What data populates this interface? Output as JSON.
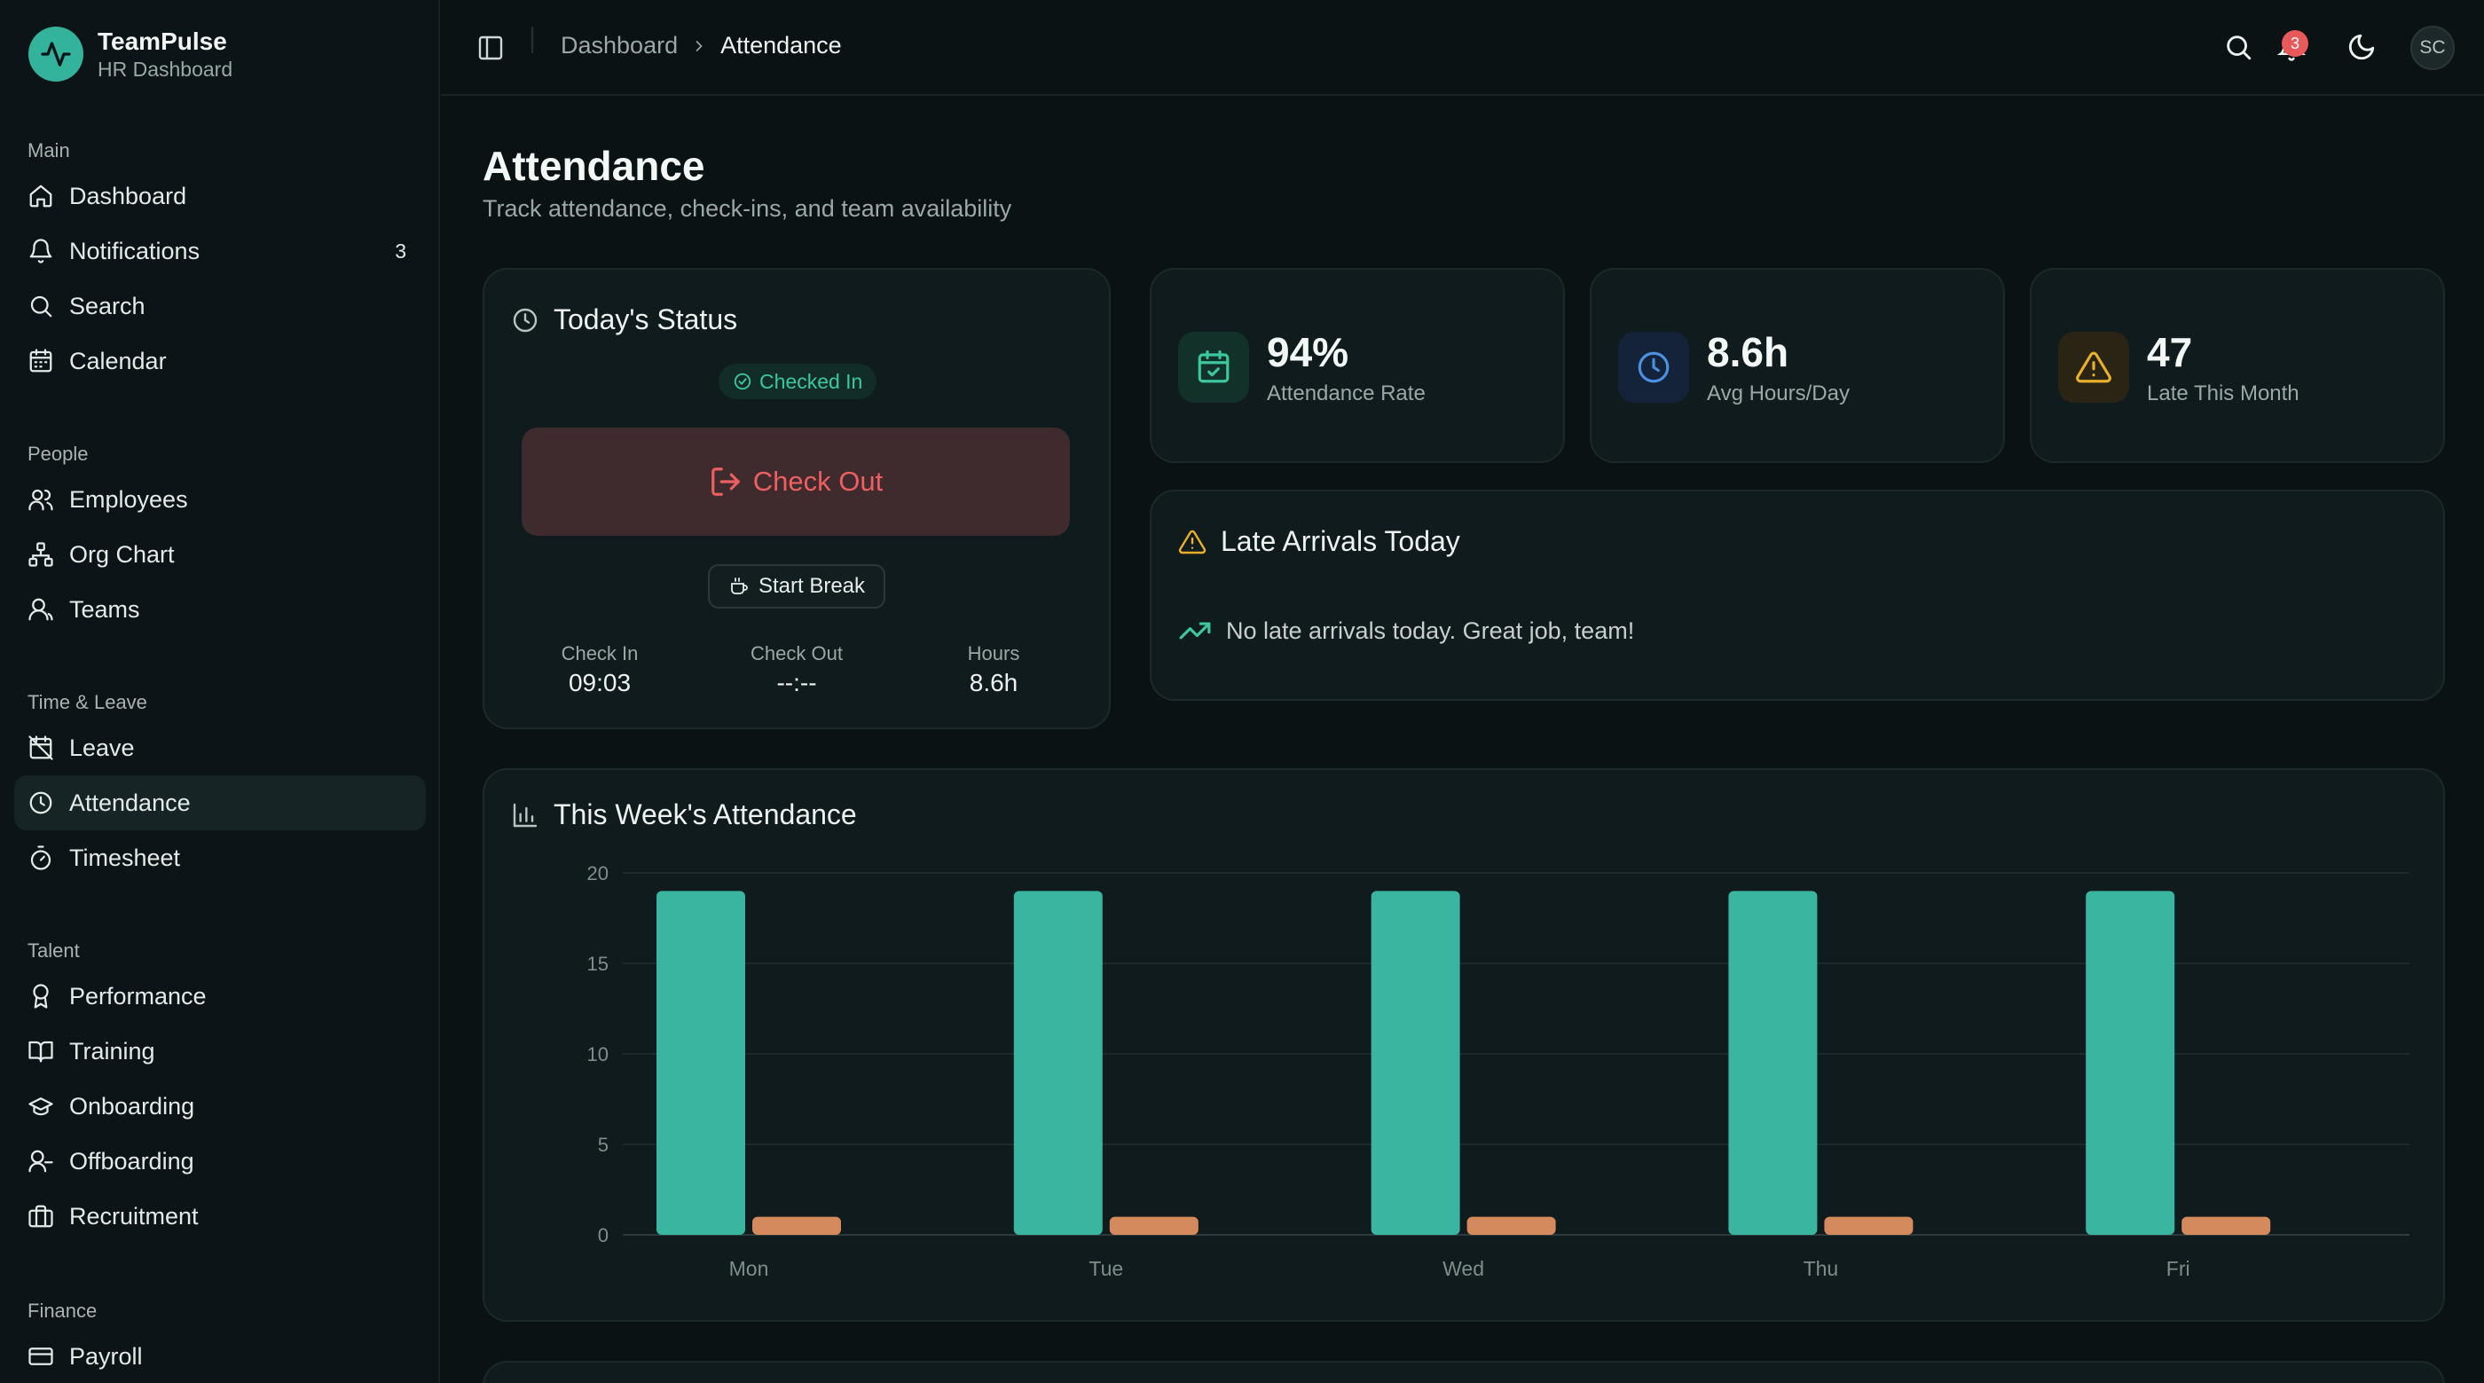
{
  "brand": {
    "name": "TeamPulse",
    "subtitle": "HR Dashboard"
  },
  "sidebar": {
    "groups": [
      {
        "label": "Main",
        "items": [
          {
            "label": "Dashboard",
            "icon": "home-icon"
          },
          {
            "label": "Notifications",
            "icon": "bell-icon",
            "badge": "3"
          },
          {
            "label": "Search",
            "icon": "search-icon"
          },
          {
            "label": "Calendar",
            "icon": "calendar-icon"
          }
        ]
      },
      {
        "label": "People",
        "items": [
          {
            "label": "Employees",
            "icon": "users-icon"
          },
          {
            "label": "Org Chart",
            "icon": "org-chart-icon"
          },
          {
            "label": "Teams",
            "icon": "user-icon"
          }
        ]
      },
      {
        "label": "Time & Leave",
        "items": [
          {
            "label": "Leave",
            "icon": "calendar-off-icon"
          },
          {
            "label": "Attendance",
            "icon": "clock-icon",
            "active": true
          },
          {
            "label": "Timesheet",
            "icon": "timer-icon"
          }
        ]
      },
      {
        "label": "Talent",
        "items": [
          {
            "label": "Performance",
            "icon": "award-icon"
          },
          {
            "label": "Training",
            "icon": "book-icon"
          },
          {
            "label": "Onboarding",
            "icon": "graduation-cap-icon"
          },
          {
            "label": "Offboarding",
            "icon": "user-minus-icon"
          },
          {
            "label": "Recruitment",
            "icon": "briefcase-icon"
          }
        ]
      },
      {
        "label": "Finance",
        "items": [
          {
            "label": "Payroll",
            "icon": "credit-card-icon"
          }
        ]
      }
    ]
  },
  "header": {
    "breadcrumb": {
      "parent": "Dashboard",
      "current": "Attendance"
    },
    "notification_count": "3",
    "avatar_initials": "SC"
  },
  "page": {
    "title": "Attendance",
    "subtitle": "Track attendance, check-ins, and team availability"
  },
  "status_card": {
    "title": "Today's Status",
    "status": "Checked In",
    "checkout_label": "Check Out",
    "break_label": "Start Break",
    "stats": [
      {
        "label": "Check In",
        "value": "09:03"
      },
      {
        "label": "Check Out",
        "value": "--:--"
      },
      {
        "label": "Hours",
        "value": "8.6h"
      }
    ]
  },
  "kpis": [
    {
      "value": "94%",
      "label": "Attendance Rate",
      "icon": "calendar-check-icon",
      "color": "#3cc79e"
    },
    {
      "value": "8.6h",
      "label": "Avg Hours/Day",
      "icon": "clock-icon",
      "color": "#4d8fe0"
    },
    {
      "value": "47",
      "label": "Late This Month",
      "icon": "alert-triangle-icon",
      "color": "#e8b02a"
    }
  ],
  "late_arrivals": {
    "title": "Late Arrivals Today",
    "message": "No late arrivals today. Great job, team!"
  },
  "weekly_chart": {
    "title": "This Week's Attendance"
  },
  "chart_data": {
    "type": "bar",
    "title": "This Week's Attendance",
    "categories": [
      "Mon",
      "Tue",
      "Wed",
      "Thu",
      "Fri"
    ],
    "series": [
      {
        "values": [
          19,
          19,
          19,
          19,
          19
        ],
        "color": "#3ab5a0"
      },
      {
        "values": [
          1,
          1,
          1,
          1,
          1
        ],
        "color": "#d48a5c"
      }
    ],
    "yticks": [
      0,
      5,
      10,
      15,
      20
    ],
    "ylim": [
      0,
      20
    ],
    "grid": true
  }
}
